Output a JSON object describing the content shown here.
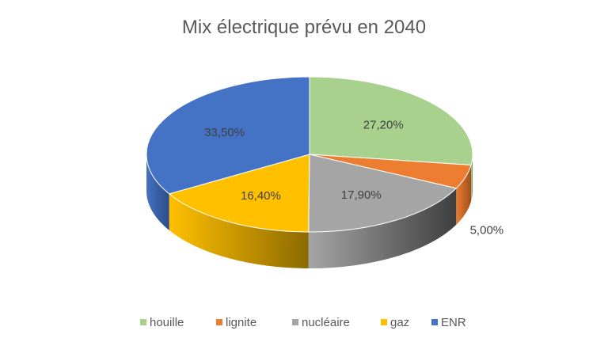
{
  "chart_data": {
    "type": "pie",
    "style": "3d",
    "title": "Mix électrique prévu en 2040",
    "categories": [
      "houille",
      "lignite",
      "nucléaire",
      "gaz",
      "ENR"
    ],
    "values": [
      27.2,
      5.0,
      17.9,
      16.4,
      33.5
    ],
    "labels": [
      "27,20%",
      "5,00%",
      "17,90%",
      "16,40%",
      "33,50%"
    ],
    "colors": [
      "#A9D18E",
      "#ED7D31",
      "#A5A5A5",
      "#FFC000",
      "#4472C4"
    ],
    "side_colors": [
      "#6E8C5A",
      "#9E4F1B",
      "#3F3F3F",
      "#8C6A00",
      "#2C4C86"
    ],
    "legend_position": "bottom"
  }
}
